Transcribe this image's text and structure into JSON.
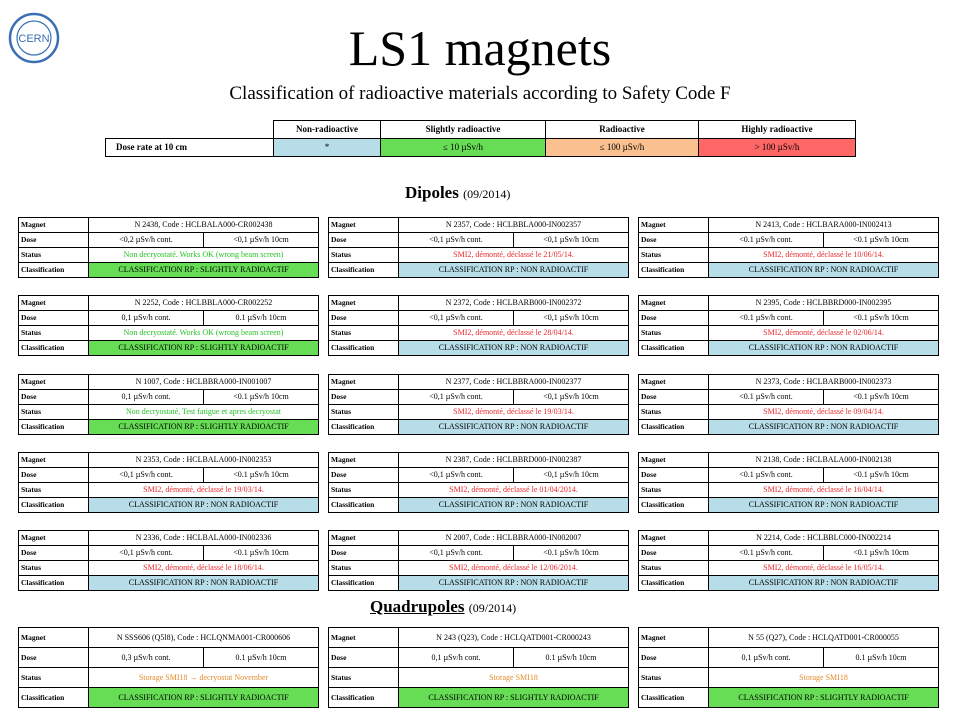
{
  "title": "LS1 magnets",
  "subtitle": "Classification of radioactive materials according to Safety Code F",
  "logo_text": "CERN",
  "legend": {
    "headers": [
      "Non-radioactive",
      "Slightly radioactive",
      "Radioactive",
      "Highly radioactive"
    ],
    "row_label": "Dose rate at 10 cm",
    "values": [
      "*",
      "≤ 10 µSv/h",
      "≤ 100 µSv/h",
      "> 100 µSv/h"
    ],
    "colors": [
      "#b7dde8",
      "#66dd55",
      "#fac090",
      "#ff6666"
    ]
  },
  "labels": {
    "magnet": "Magnet",
    "dose": "Dose",
    "status": "Status",
    "classification": "Classification"
  },
  "dipoles": {
    "heading": "Dipoles",
    "date": "(09/2014)",
    "cards": [
      {
        "magnet": "N 2438, Code : HCLBALA000-CR002438",
        "dose1": "<0,2 µSv/h cont.",
        "dose2": "<0,1 µSv/h 10cm",
        "status": "Non decryostaté. Works OK (wrong beam screen)",
        "status_color": "green",
        "classification": "CLASSIFICATION RP : SLIGHTLY RADIOACTIF",
        "class_type": "slight"
      },
      {
        "magnet": "N 2357, Code : HCLBBLA000-IN002357",
        "dose1": "<0,1 µSv/h cont.",
        "dose2": "<0,1 µSv/h 10cm",
        "status": "SMI2, démonté, déclassé le 21/05/14.",
        "status_color": "red",
        "classification": "CLASSIFICATION RP : NON RADIOACTIF",
        "class_type": "non"
      },
      {
        "magnet": "N 2413, Code : HCLBARA000-IN002413",
        "dose1": "<0.1 µSv/h cont.",
        "dose2": "<0.1 µSv/h 10cm",
        "status": "SMI2, démonté, déclassé le 10/06/14.",
        "status_color": "red",
        "classification": "CLASSIFICATION RP : NON RADIOACTIF",
        "class_type": "non"
      },
      {
        "magnet": "N 2252, Code : HCLBBLA000-CR002252",
        "dose1": "0,1 µSv/h cont.",
        "dose2": "0.1 µSv/h 10cm",
        "status": "Non decryostaté. Works OK (wrong beam screen)",
        "status_color": "green",
        "classification": "CLASSIFICATION RP : SLIGHTLY RADIOACTIF",
        "class_type": "slight"
      },
      {
        "magnet": "N 2372, Code : HCLBARB000-IN002372",
        "dose1": "<0,1 µSv/h cont.",
        "dose2": "<0,1 µSv/h 10cm",
        "status": "SMI2, démonté, déclassé le 28/04/14.",
        "status_color": "red",
        "classification": "CLASSIFICATION RP : NON RADIOACTIF",
        "class_type": "non"
      },
      {
        "magnet": "N 2395, Code : HCLBBRD000-IN002395",
        "dose1": "<0.1 µSv/h cont.",
        "dose2": "<0.1 µSv/h 10cm",
        "status": "SMI2, démonté, déclassé le 02/06/14.",
        "status_color": "red",
        "classification": "CLASSIFICATION RP : NON RADIOACTIF",
        "class_type": "non"
      },
      {
        "magnet": "N 1007, Code : HCLBBRA000-IN001007",
        "dose1": "0,1 µSv/h cont.",
        "dose2": "<0.1 µSv/h 10cm",
        "status": "Non decryostaté, Test fatigue et apres decryostat",
        "status_color": "green",
        "classification": "CLASSIFICATION RP : SLIGHTLY RADIOACTIF",
        "class_type": "slight"
      },
      {
        "magnet": "N 2377, Code : HCLBBRA000-IN002377",
        "dose1": "<0,1 µSv/h cont.",
        "dose2": "<0,1 µSv/h 10cm",
        "status": "SMI2, démonté, déclassé le 19/03/14.",
        "status_color": "red",
        "classification": "CLASSIFICATION RP : NON RADIOACTIF",
        "class_type": "non"
      },
      {
        "magnet": "N 2373, Code : HCLBARB000-IN002373",
        "dose1": "<0.1 µSv/h cont.",
        "dose2": "<0.1 µSv/h 10cm",
        "status": "SMI2, démonté, déclassé le 09/04/14.",
        "status_color": "red",
        "classification": "CLASSIFICATION RP : NON RADIOACTIF",
        "class_type": "non"
      },
      {
        "magnet": "N 2353, Code : HCLBALA000-IN002353",
        "dose1": "<0,1 µSv/h cont.",
        "dose2": "<0.1 µSv/h 10cm",
        "status": "SMI2, démonté, déclassé le 19/03/14.",
        "status_color": "red",
        "classification": "CLASSIFICATION RP : NON RADIOACTIF",
        "class_type": "non"
      },
      {
        "magnet": "N 2387, Code : HCLBBRD000-IN002387",
        "dose1": "<0,1 µSv/h cont.",
        "dose2": "<0,1 µSv/h 10cm",
        "status": "SMI2, démonté, déclassé le 01/04/2014.",
        "status_color": "red",
        "classification": "CLASSIFICATION RP : NON RADIOACTIF",
        "class_type": "non"
      },
      {
        "magnet": "N 2138, Code : HCLBALA000-IN002138",
        "dose1": "<0.1 µSv/h cont.",
        "dose2": "<0.1 µSv/h 10cm",
        "status": "SMI2, démonté, déclassé le 16/04/14.",
        "status_color": "red",
        "classification": "CLASSIFICATION RP : NON RADIOACTIF",
        "class_type": "non"
      },
      {
        "magnet": "N 2336, Code : HCLBALA000-IN002336",
        "dose1": "<0,1 µSv/h cont.",
        "dose2": "<0.1 µSv/h 10cm",
        "status": "SMI2, démonté, déclassé le 18/06/14.",
        "status_color": "red",
        "classification": "CLASSIFICATION RP : NON RADIOACTIF",
        "class_type": "non"
      },
      {
        "magnet": "N 2007, Code : HCLBBRA000-IN002007",
        "dose1": "<0,1 µSv/h cont.",
        "dose2": "<0.1 µSv/h 10cm",
        "status": "SMI2, démonté, déclassé le 12/06/2014.",
        "status_color": "red",
        "classification": "CLASSIFICATION RP : NON RADIOACTIF",
        "class_type": "non"
      },
      {
        "magnet": "N 2214, Code : HCLBBLC000-IN002214",
        "dose1": "<0.1 µSv/h cont.",
        "dose2": "<0.1 µSv/h 10cm",
        "status": "SMI2, démonté, déclassé le 16/05/14.",
        "status_color": "red",
        "classification": "CLASSIFICATION RP : NON RADIOACTIF",
        "class_type": "non"
      }
    ]
  },
  "quadrupoles": {
    "heading": "Quadrupoles",
    "date": "(09/2014)",
    "cards": [
      {
        "magnet": "N SSS606 (Q5l8), Code : HCLQNMA001-CR000606",
        "dose1": "0,3 µSv/h cont.",
        "dose2": "0.1 µSv/h 10cm",
        "status": "Storage SMI18 → decryostat November",
        "status_color": "orange",
        "classification": "CLASSIFICATION RP : SLIGHTLY RADIOACTIF",
        "class_type": "slight"
      },
      {
        "magnet": "N 243 (Q23), Code : HCLQATD001-CR000243",
        "dose1": "0,1 µSv/h cont.",
        "dose2": "0.1 µSv/h 10cm",
        "status": "Storage SMI18",
        "status_color": "orange",
        "classification": "CLASSIFICATION RP : SLIGHTLY RADIOACTIF",
        "class_type": "slight"
      },
      {
        "magnet": "N 55 (Q27), Code : HCLQATD001-CR000055",
        "dose1": "0,1 µSv/h cont.",
        "dose2": "0.1 µSv/h 10cm",
        "status": "Storage SMI18",
        "status_color": "orange",
        "classification": "CLASSIFICATION RP : SLIGHTLY RADIOACTIF",
        "class_type": "slight"
      }
    ]
  }
}
